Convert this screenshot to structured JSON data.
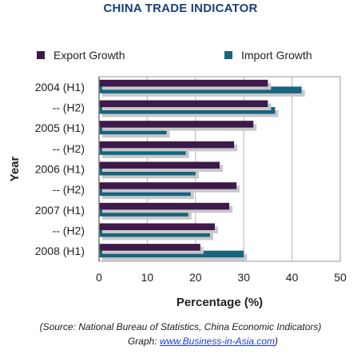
{
  "chart_data": {
    "type": "bar",
    "orientation": "horizontal",
    "title": "CHINA TRADE INDICATOR",
    "xlabel": "Percentage (%)",
    "ylabel": "Year",
    "xlim": [
      0,
      50
    ],
    "xticks": [
      "0",
      "10",
      "20",
      "30",
      "40",
      "50"
    ],
    "categories": [
      "2004 (H1)",
      "-- (H2)",
      "2005 (H1)",
      "-- (H2)",
      "2006 (H1)",
      "-- (H2)",
      "2007 (H1)",
      "-- (H2)",
      "2008 (H1)"
    ],
    "series": [
      {
        "name": "Export Growth",
        "color": "#3d1a4a",
        "values": [
          35,
          35,
          32,
          28,
          25,
          28.5,
          27,
          24,
          21
        ]
      },
      {
        "name": "Import Growth",
        "color": "#17647f",
        "values": [
          42,
          36.5,
          14,
          18,
          20,
          19,
          18.5,
          23,
          30
        ]
      }
    ],
    "grid": true,
    "legend_position": "top"
  },
  "footer": {
    "source": "(Source: National Bureau of Statistics, China Economic Indicators)",
    "graph_prefix": "Graph: ",
    "graph_link": "www.Business-in-Asia.com",
    "graph_suffix": ")"
  }
}
